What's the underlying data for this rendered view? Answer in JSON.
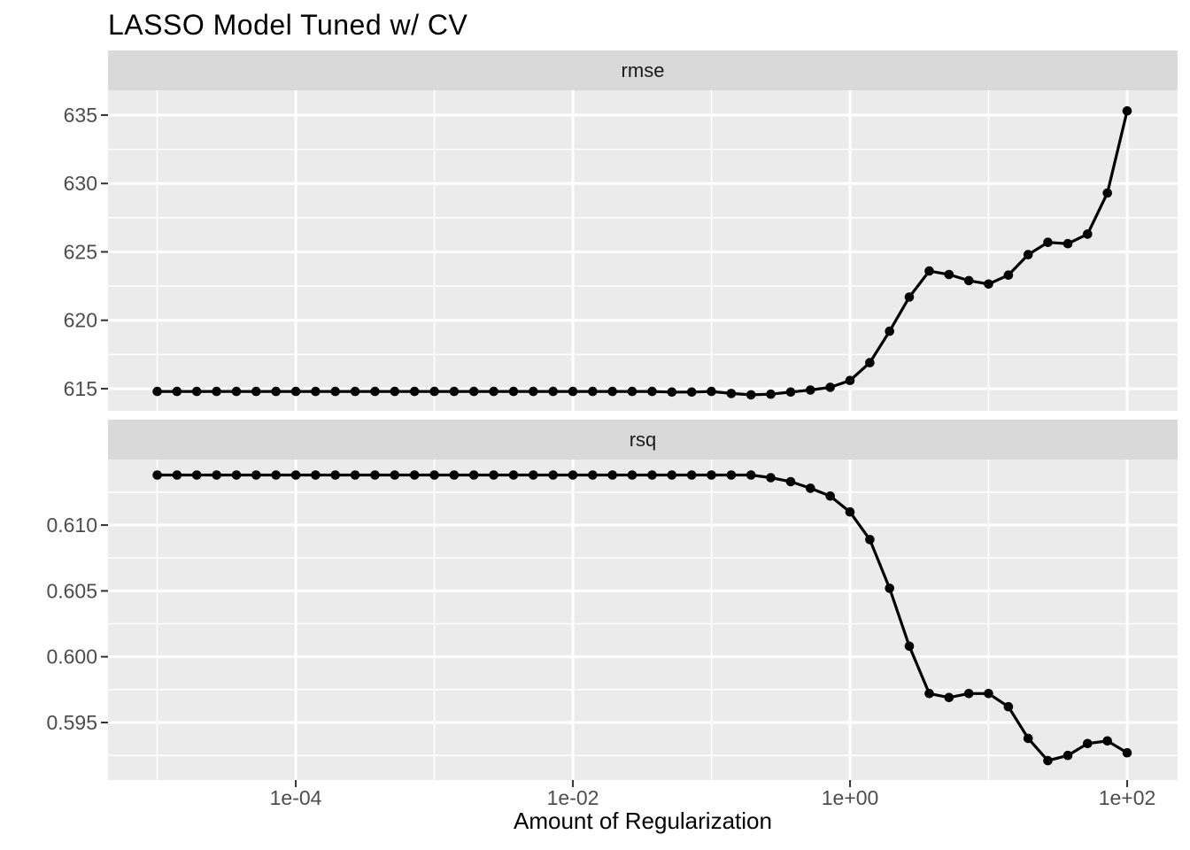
{
  "chart_data": {
    "type": "line",
    "title": "LASSO Model Tuned w/ CV",
    "xlabel": "Amount of Regularization",
    "ylabel": "",
    "legend": "none",
    "grid": true,
    "x_scale": "log10",
    "x": [
      1e-05,
      1.39e-05,
      1.93e-05,
      2.68e-05,
      3.73e-05,
      5.18e-05,
      7.2e-05,
      0.0001,
      0.000139,
      0.000193,
      0.000268,
      0.000373,
      0.000518,
      0.00072,
      0.001,
      0.00139,
      0.00193,
      0.00268,
      0.00373,
      0.00518,
      0.0072,
      0.01,
      0.0139,
      0.0193,
      0.0268,
      0.0373,
      0.0518,
      0.072,
      0.1,
      0.139,
      0.193,
      0.268,
      0.373,
      0.518,
      0.72,
      1.0,
      1.39,
      1.93,
      2.68,
      3.73,
      5.18,
      7.2,
      10.0,
      13.9,
      19.3,
      26.8,
      37.3,
      51.8,
      72.0,
      100.0
    ],
    "series": [
      {
        "name": "rmse",
        "values": [
          614.8,
          614.8,
          614.8,
          614.8,
          614.8,
          614.8,
          614.8,
          614.8,
          614.8,
          614.8,
          614.8,
          614.8,
          614.8,
          614.8,
          614.8,
          614.8,
          614.8,
          614.8,
          614.8,
          614.8,
          614.8,
          614.8,
          614.8,
          614.8,
          614.8,
          614.8,
          614.75,
          614.75,
          614.8,
          614.65,
          614.55,
          614.6,
          614.75,
          614.9,
          615.1,
          615.6,
          616.9,
          619.2,
          621.7,
          623.6,
          623.35,
          622.9,
          622.65,
          623.3,
          624.8,
          625.7,
          625.6,
          626.3,
          629.3,
          635.3
        ]
      },
      {
        "name": "rsq",
        "values": [
          0.6138,
          0.6138,
          0.6138,
          0.6138,
          0.6138,
          0.6138,
          0.6138,
          0.6138,
          0.6138,
          0.6138,
          0.6138,
          0.6138,
          0.6138,
          0.6138,
          0.6138,
          0.6138,
          0.6138,
          0.6138,
          0.6138,
          0.6138,
          0.6138,
          0.6138,
          0.6138,
          0.6138,
          0.6138,
          0.6138,
          0.6138,
          0.6138,
          0.6138,
          0.6138,
          0.6138,
          0.6136,
          0.6133,
          0.6128,
          0.6122,
          0.611,
          0.6089,
          0.6052,
          0.6008,
          0.5972,
          0.5969,
          0.5972,
          0.5972,
          0.5962,
          0.5938,
          0.5921,
          0.5925,
          0.5934,
          0.5936,
          0.5927
        ]
      }
    ],
    "facets": [
      {
        "label": "rmse",
        "ylim": [
          613.38,
          636.81
        ],
        "y_major": [
          615,
          620,
          625,
          630,
          635
        ],
        "y_minor": [
          617.5,
          622.5,
          627.5,
          632.5
        ],
        "y_tick_labels": [
          "615",
          "620",
          "625",
          "630",
          "635"
        ]
      },
      {
        "label": "rsq",
        "ylim": [
          0.59063,
          0.61498
        ],
        "y_major": [
          0.595,
          0.6,
          0.605,
          0.61
        ],
        "y_minor": [
          0.5925,
          0.5975,
          0.6025,
          0.6075,
          0.6125
        ],
        "y_tick_labels": [
          "0.595",
          "0.600",
          "0.605",
          "0.610"
        ]
      }
    ],
    "x_axis": {
      "tick_labels": [
        "1e-04",
        "1e-02",
        "1e+00",
        "1e+02"
      ],
      "tick_log10": [
        -4,
        -2,
        0,
        2
      ],
      "minor_log10": [
        -5,
        -3,
        -1,
        1
      ],
      "xlim_log10": [
        -5.355,
        2.364
      ]
    },
    "style": {
      "panel_bg": "#EBEBEB",
      "strip_bg": "#D9D9D9",
      "gridline": "#FFFFFF",
      "line_color": "#000000",
      "point_color": "#000000",
      "tick_label_color": "#4D4D4D",
      "tick_mark_color": "#333333",
      "strip_text_color": "#1A1A1A",
      "title_color": "#000000"
    }
  }
}
